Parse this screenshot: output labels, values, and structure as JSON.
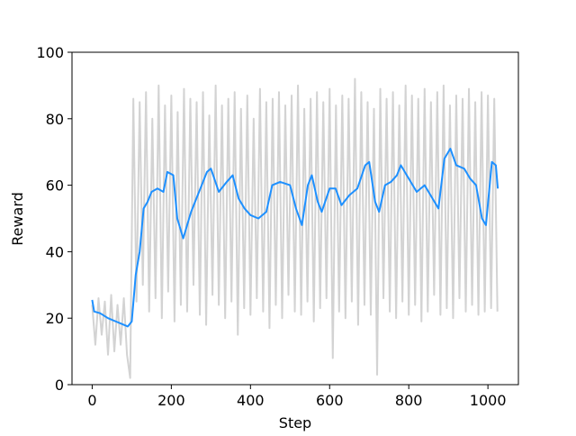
{
  "chart_data": {
    "type": "line",
    "xlabel": "Step",
    "ylabel": "Reward",
    "xlim": [
      -51,
      1077
    ],
    "ylim": [
      0,
      100
    ],
    "xticks": [
      0,
      200,
      400,
      600,
      800,
      1000
    ],
    "yticks": [
      0,
      20,
      40,
      60,
      80,
      100
    ],
    "series": [
      {
        "color": "#d3d3d3",
        "x": [
          0,
          8,
          16,
          24,
          32,
          40,
          48,
          56,
          64,
          72,
          80,
          88,
          96,
          104,
          112,
          120,
          128,
          136,
          144,
          152,
          160,
          168,
          176,
          184,
          192,
          200,
          208,
          216,
          224,
          232,
          240,
          248,
          256,
          264,
          272,
          280,
          288,
          296,
          304,
          312,
          320,
          328,
          336,
          344,
          352,
          360,
          368,
          376,
          384,
          392,
          400,
          408,
          416,
          424,
          432,
          440,
          448,
          456,
          464,
          472,
          480,
          488,
          496,
          504,
          512,
          520,
          528,
          536,
          544,
          552,
          560,
          568,
          576,
          584,
          592,
          600,
          608,
          616,
          624,
          632,
          640,
          648,
          656,
          664,
          672,
          680,
          688,
          696,
          704,
          712,
          720,
          728,
          736,
          744,
          752,
          760,
          768,
          776,
          784,
          792,
          800,
          808,
          816,
          824,
          832,
          840,
          848,
          856,
          864,
          872,
          880,
          888,
          896,
          904,
          912,
          920,
          928,
          936,
          944,
          952,
          960,
          968,
          976,
          984,
          992,
          1000,
          1008,
          1016,
          1024
        ],
        "values": [
          24,
          12,
          26,
          15,
          25,
          9,
          27,
          10,
          24,
          12,
          26,
          9,
          2,
          86,
          25,
          85,
          30,
          88,
          22,
          80,
          26,
          90,
          20,
          84,
          28,
          87,
          19,
          82,
          24,
          89,
          22,
          86,
          30,
          85,
          21,
          88,
          18,
          81,
          27,
          90,
          24,
          84,
          20,
          86,
          25,
          88,
          15,
          83,
          23,
          87,
          21,
          80,
          26,
          89,
          22,
          85,
          17,
          86,
          24,
          88,
          20,
          84,
          27,
          87,
          22,
          90,
          21,
          83,
          25,
          86,
          19,
          88,
          23,
          85,
          26,
          89,
          8,
          84,
          22,
          87,
          20,
          86,
          25,
          92,
          18,
          88,
          24,
          85,
          21,
          83,
          3,
          89,
          26,
          86,
          22,
          88,
          20,
          84,
          25,
          90,
          21,
          87,
          24,
          86,
          19,
          89,
          22,
          85,
          27,
          88,
          21,
          90,
          23,
          84,
          20,
          87,
          26,
          86,
          22,
          89,
          24,
          85,
          21,
          88,
          22,
          87,
          23,
          86,
          22
        ]
      },
      {
        "color": "#1e90ff",
        "x": [
          0,
          5,
          20,
          40,
          60,
          80,
          90,
          100,
          110,
          120,
          130,
          140,
          150,
          165,
          180,
          190,
          205,
          215,
          230,
          250,
          270,
          290,
          300,
          320,
          340,
          355,
          370,
          385,
          400,
          420,
          440,
          455,
          475,
          500,
          515,
          530,
          545,
          555,
          570,
          580,
          600,
          615,
          630,
          650,
          670,
          690,
          700,
          715,
          725,
          740,
          755,
          770,
          780,
          800,
          820,
          840,
          860,
          875,
          890,
          905,
          920,
          940,
          955,
          970,
          985,
          995,
          1010,
          1020,
          1025
        ],
        "values": [
          25.5,
          22,
          21.5,
          20,
          19,
          18,
          17.5,
          19,
          33,
          40,
          53,
          55,
          58,
          59,
          58,
          64,
          63,
          50,
          44,
          52,
          58,
          64,
          65,
          58,
          61,
          63,
          56,
          53,
          51,
          50,
          52,
          60,
          61,
          60,
          53,
          48,
          60,
          63,
          55,
          52,
          59,
          59,
          54,
          57,
          59,
          66,
          67,
          55,
          52,
          60,
          61,
          63,
          66,
          62,
          58,
          60,
          56,
          53,
          68,
          71,
          66,
          65,
          62,
          60,
          50,
          48,
          67,
          66,
          59
        ]
      }
    ]
  }
}
